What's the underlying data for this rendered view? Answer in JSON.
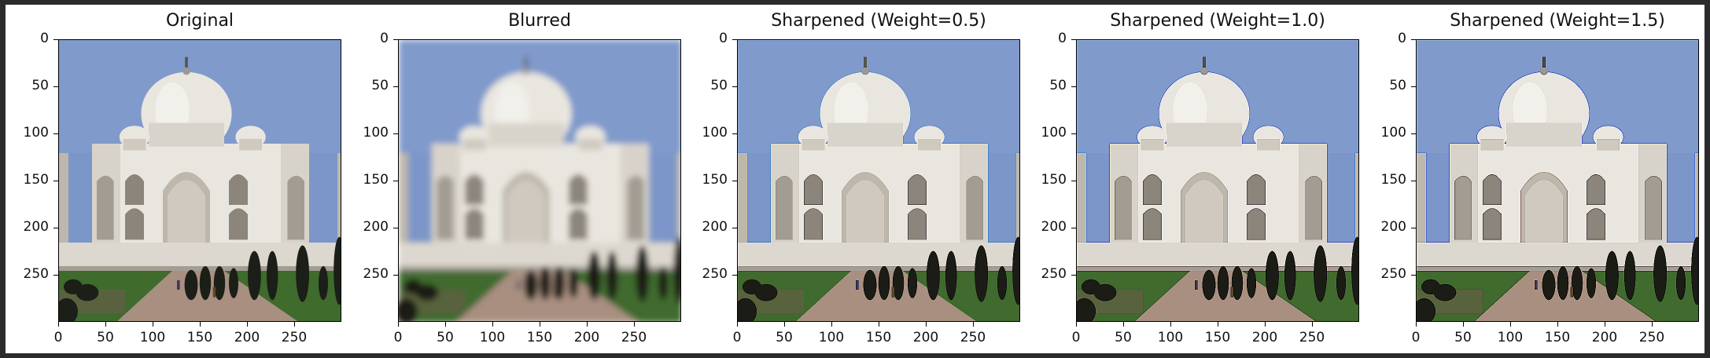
{
  "panels": [
    {
      "title": "Original",
      "blur": 0,
      "sharp": 0
    },
    {
      "title": "Blurred",
      "blur": 3.2,
      "sharp": 0
    },
    {
      "title": "Sharpened (Weight=0.5)",
      "blur": 0,
      "sharp": 0.5
    },
    {
      "title": "Sharpened (Weight=1.0)",
      "blur": 0,
      "sharp": 1.0
    },
    {
      "title": "Sharpened (Weight=1.5)",
      "blur": 0,
      "sharp": 1.5
    }
  ],
  "y_ticks": [
    "0",
    "50",
    "100",
    "150",
    "200",
    "250"
  ],
  "x_ticks": [
    "0",
    "50",
    "100",
    "150",
    "200",
    "250"
  ],
  "colors": {
    "sky": "#7c96c9",
    "marble": "#e9e6df",
    "marble_shadow": "#bdb7ad",
    "trees": "#1b1f18",
    "lawn": "#3f6b2d",
    "path": "#a88f80"
  }
}
